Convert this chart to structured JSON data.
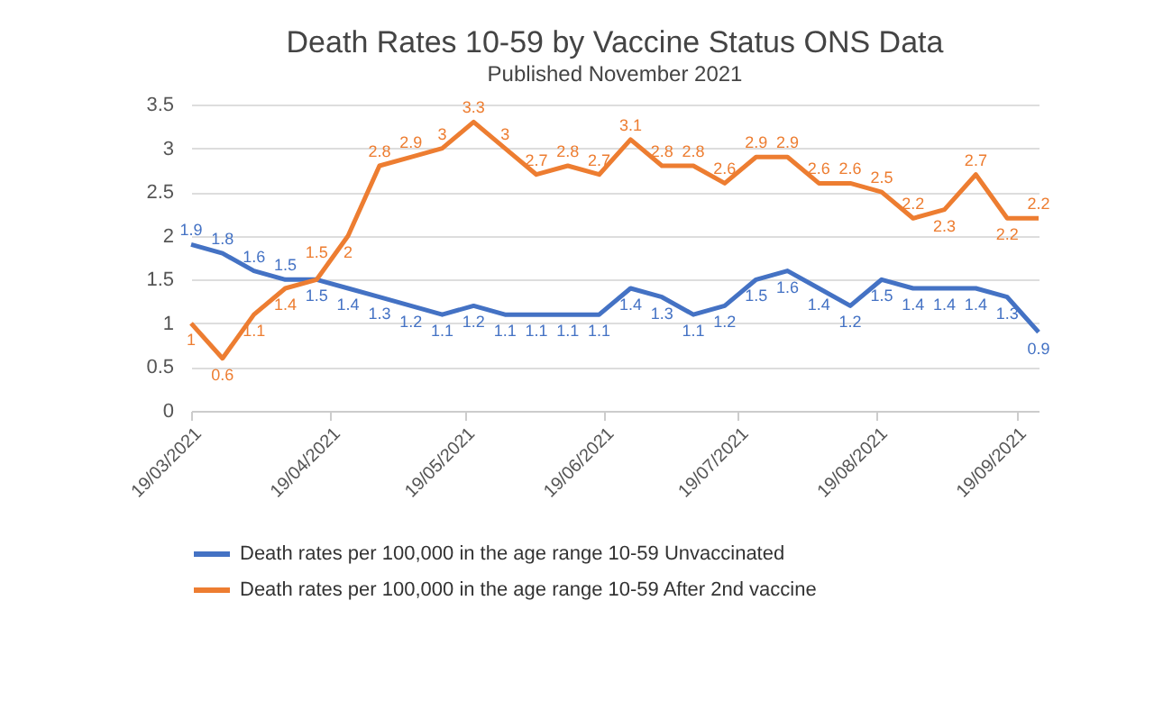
{
  "chart_data": {
    "type": "line",
    "title": "Death Rates 10-59  by Vaccine Status ONS Data",
    "subtitle": "Published November 2021",
    "x": [
      "2021-03-19",
      "2021-03-26",
      "2021-04-02",
      "2021-04-09",
      "2021-04-16",
      "2021-04-23",
      "2021-04-30",
      "2021-05-07",
      "2021-05-14",
      "2021-05-21",
      "2021-05-28",
      "2021-06-04",
      "2021-06-11",
      "2021-06-18",
      "2021-06-25",
      "2021-07-02",
      "2021-07-09",
      "2021-07-16",
      "2021-07-23",
      "2021-07-30",
      "2021-08-06",
      "2021-08-13",
      "2021-08-20",
      "2021-08-27",
      "2021-09-03",
      "2021-09-10",
      "2021-09-17",
      "2021-09-24"
    ],
    "series": [
      {
        "name": "Death rates per 100,000 in the age range 10-59 Unvaccinated",
        "color": "#4472c4",
        "values": [
          1.9,
          1.8,
          1.6,
          1.5,
          1.5,
          1.4,
          1.3,
          1.2,
          1.1,
          1.2,
          1.1,
          1.1,
          1.1,
          1.1,
          1.4,
          1.3,
          1.1,
          1.2,
          1.5,
          1.6,
          1.4,
          1.2,
          1.5,
          1.4,
          1.4,
          1.4,
          1.3,
          0.9
        ]
      },
      {
        "name": "Death rates per 100,000 in the age range 10-59 After 2nd  vaccine",
        "color": "#ed7d31",
        "values": [
          1,
          0.6,
          1.1,
          1.4,
          1.5,
          2,
          2.8,
          2.9,
          3,
          3.3,
          3,
          2.7,
          2.8,
          2.7,
          3.1,
          2.8,
          2.8,
          2.6,
          2.9,
          2.9,
          2.6,
          2.6,
          2.5,
          2.2,
          2.3,
          2.7,
          2.2,
          2.2
        ]
      }
    ],
    "xlim": [
      "2021-03-19",
      "2021-09-24"
    ],
    "xticks": [
      {
        "value": "2021-03-19",
        "label": "19/03/2021"
      },
      {
        "value": "2021-04-19",
        "label": "19/04/2021"
      },
      {
        "value": "2021-05-19",
        "label": "19/05/2021"
      },
      {
        "value": "2021-06-19",
        "label": "19/06/2021"
      },
      {
        "value": "2021-07-19",
        "label": "19/07/2021"
      },
      {
        "value": "2021-08-19",
        "label": "19/08/2021"
      },
      {
        "value": "2021-09-19",
        "label": "19/09/2021"
      }
    ],
    "ylim": [
      0,
      3.5
    ],
    "yticks": [
      0,
      0.5,
      1,
      1.5,
      2,
      2.5,
      3,
      3.5
    ],
    "grid": "y",
    "legend": "bottom",
    "data_labels": true,
    "line_style": "solid"
  }
}
